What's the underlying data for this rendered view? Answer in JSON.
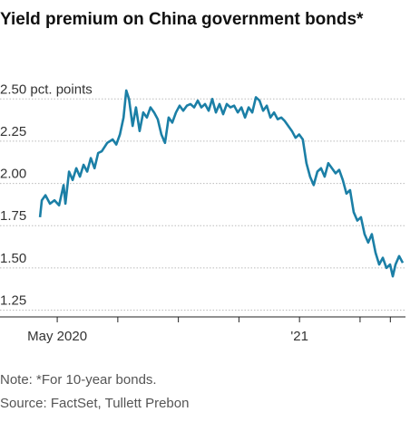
{
  "chart_data": {
    "type": "line",
    "title": "Yield premium on China government bonds*",
    "note": "Note: *For 10-year bonds.",
    "source": "Source: FactSet, Tullett Prebon",
    "xlim": [
      -1.89,
      11.5
    ],
    "xticks": [
      {
        "value": 0,
        "label": "May 2020"
      },
      {
        "value": 8,
        "label": "'21"
      }
    ],
    "xminorticks": [
      2,
      4,
      6,
      10,
      11
    ],
    "ylim": [
      1.21,
      2.63
    ],
    "yticks": [
      {
        "value": 2.5,
        "label": "2.50 pct. points"
      },
      2.25,
      {
        "value": 2,
        "label": "2.00"
      },
      1.75,
      {
        "value": 1.5,
        "label": "1.50"
      },
      1.25
    ],
    "grid": true,
    "series": [
      {
        "color": "#1b7fa6",
        "x": [
          -0.57,
          -0.51,
          -0.39,
          -0.24,
          -0.09,
          0.06,
          0.21,
          0.27,
          0.39,
          0.51,
          0.63,
          0.75,
          0.87,
          0.99,
          1.11,
          1.23,
          1.35,
          1.47,
          1.65,
          1.83,
          1.95,
          2.07,
          2.19,
          2.28,
          2.37,
          2.49,
          2.6,
          2.72,
          2.84,
          2.96,
          3.08,
          3.2,
          3.32,
          3.44,
          3.56,
          3.68,
          3.8,
          3.92,
          4.04,
          4.16,
          4.28,
          4.4,
          4.52,
          4.64,
          4.76,
          4.88,
          5.0,
          5.12,
          5.24,
          5.36,
          5.48,
          5.6,
          5.72,
          5.84,
          5.96,
          6.08,
          6.2,
          6.32,
          6.44,
          6.56,
          6.68,
          6.8,
          6.92,
          7.04,
          7.16,
          7.28,
          7.4,
          7.51,
          7.63,
          7.75,
          7.87,
          7.99,
          8.11,
          8.23,
          8.35,
          8.47,
          8.59,
          8.71,
          8.83,
          8.95,
          9.07,
          9.19,
          9.31,
          9.43,
          9.55,
          9.67,
          9.79,
          9.91,
          10.03,
          10.15,
          10.27,
          10.39,
          10.51,
          10.63,
          10.75,
          10.87,
          10.99,
          11.08,
          11.17,
          11.29,
          11.41
        ],
        "values": [
          1.8,
          1.9,
          1.93,
          1.88,
          1.9,
          1.87,
          1.99,
          1.88,
          2.07,
          2.02,
          2.09,
          2.04,
          2.11,
          2.07,
          2.15,
          2.09,
          2.18,
          2.19,
          2.24,
          2.26,
          2.23,
          2.29,
          2.39,
          2.55,
          2.5,
          2.34,
          2.45,
          2.31,
          2.42,
          2.39,
          2.45,
          2.42,
          2.38,
          2.29,
          2.24,
          2.39,
          2.36,
          2.42,
          2.46,
          2.43,
          2.46,
          2.47,
          2.45,
          2.49,
          2.45,
          2.47,
          2.43,
          2.5,
          2.42,
          2.47,
          2.41,
          2.47,
          2.45,
          2.46,
          2.42,
          2.45,
          2.39,
          2.45,
          2.42,
          2.51,
          2.49,
          2.43,
          2.46,
          2.39,
          2.42,
          2.38,
          2.39,
          2.37,
          2.34,
          2.31,
          2.27,
          2.29,
          2.26,
          2.12,
          2.04,
          1.99,
          2.07,
          2.09,
          2.04,
          2.12,
          2.09,
          2.06,
          2.08,
          2.02,
          1.94,
          1.96,
          1.83,
          1.78,
          1.8,
          1.7,
          1.65,
          1.7,
          1.59,
          1.52,
          1.56,
          1.5,
          1.52,
          1.45,
          1.52,
          1.57,
          1.53
        ]
      }
    ]
  }
}
